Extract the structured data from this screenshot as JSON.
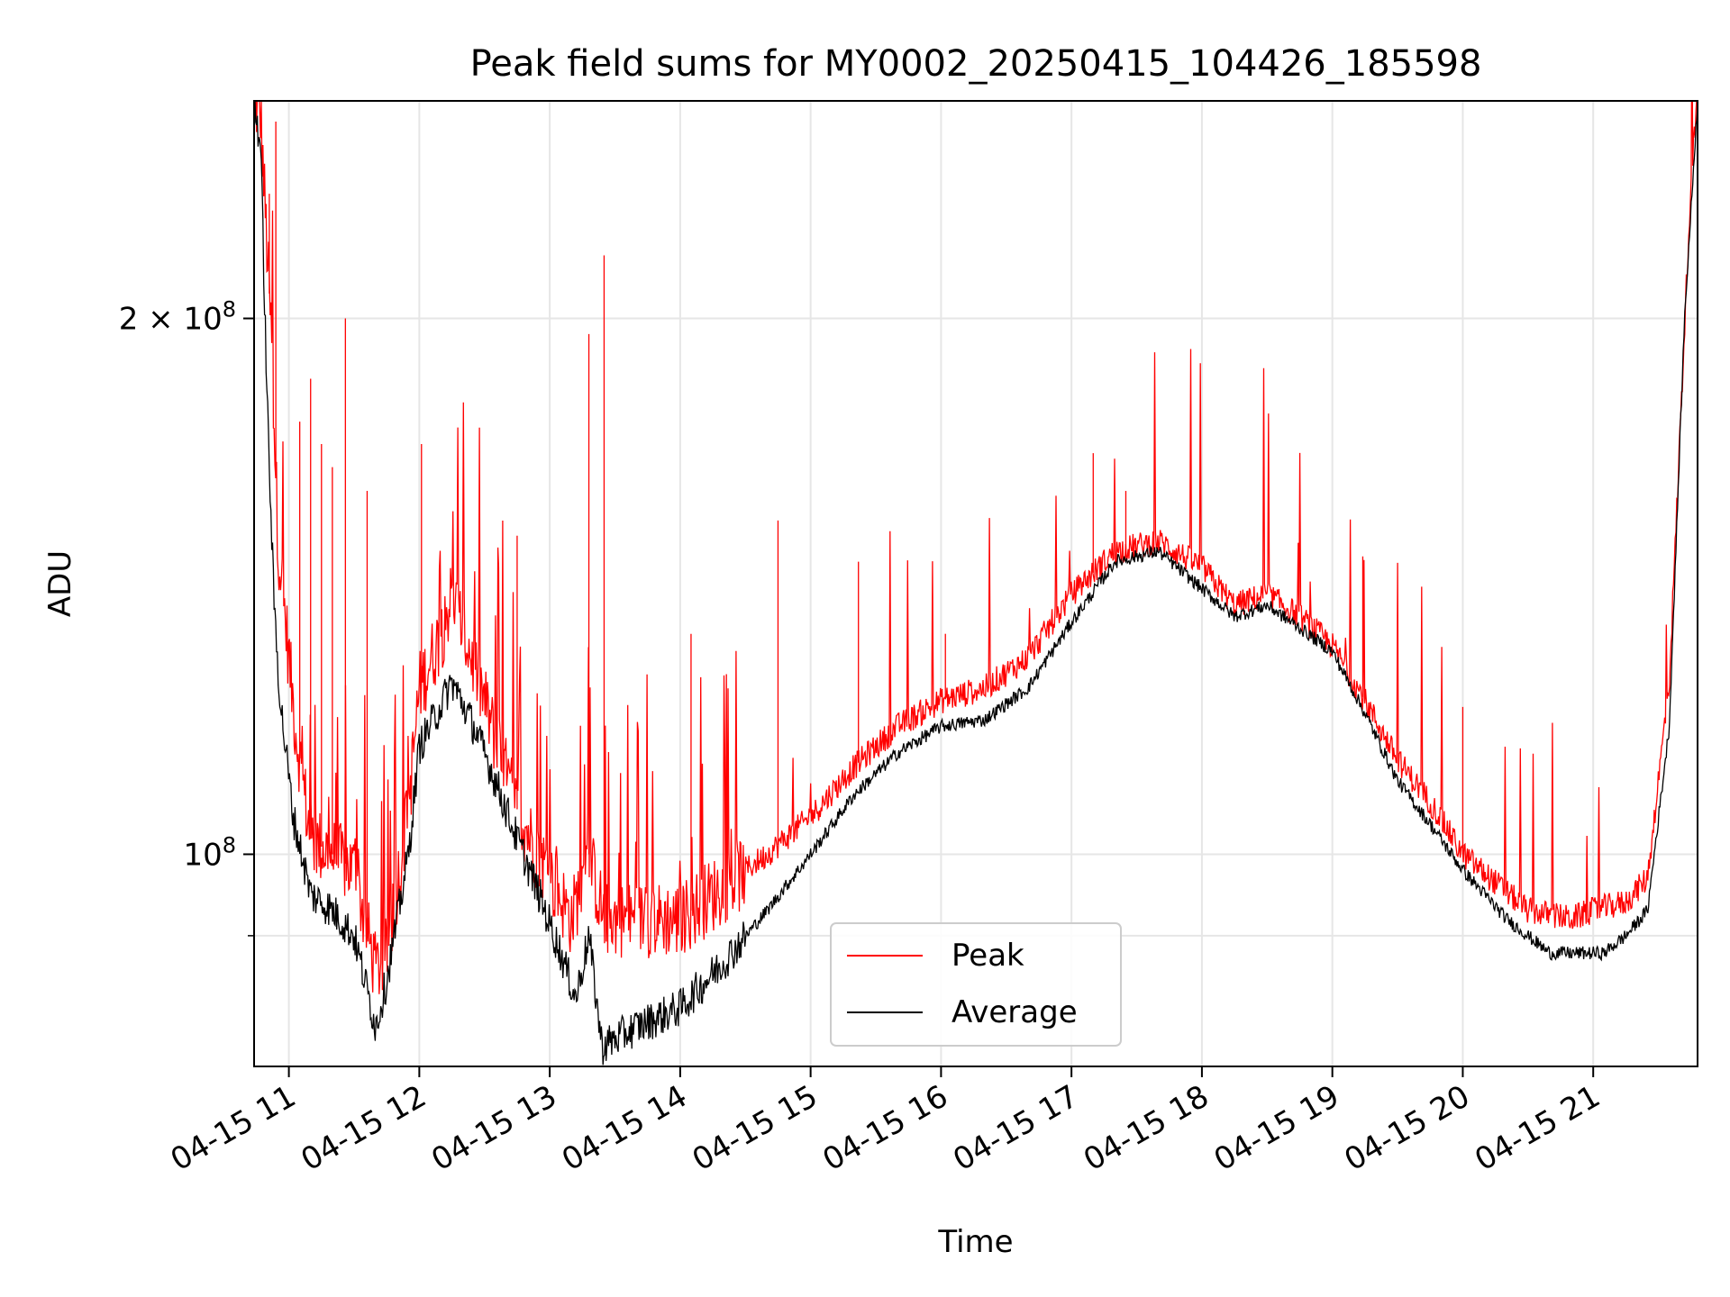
{
  "chart_data": {
    "type": "line",
    "title": "Peak field sums for MY0002_20250415_104426_185598",
    "xlabel": "Time",
    "ylabel": "ADU",
    "y_scale": "log",
    "ylim": [
      76000000,
      265000000
    ],
    "xlim": [
      "2025-04-15 10:44",
      "2025-04-15 21:48"
    ],
    "grid": true,
    "legend_position": "bottom-center",
    "x_tick_labels": [
      "04-15 11",
      "04-15 12",
      "04-15 13",
      "04-15 14",
      "04-15 15",
      "04-15 16",
      "04-15 17",
      "04-15 18",
      "04-15 19",
      "04-15 20",
      "04-15 21"
    ],
    "x_tick_values": [
      "2025-04-15 11:00",
      "2025-04-15 12:00",
      "2025-04-15 13:00",
      "2025-04-15 14:00",
      "2025-04-15 15:00",
      "2025-04-15 16:00",
      "2025-04-15 17:00",
      "2025-04-15 18:00",
      "2025-04-15 19:00",
      "2025-04-15 20:00",
      "2025-04-15 21:00"
    ],
    "y_major_ticks": [
      {
        "value": 100000000,
        "label_base": "10",
        "label_exp": "8"
      },
      {
        "value": 200000000,
        "label_base": "2 × 10",
        "label_exp": "8"
      }
    ],
    "y_minor_gridlines": [
      90000000
    ],
    "series": [
      {
        "name": "Peak",
        "color": "#ff0000",
        "x": [
          "2025-04-15 10:44",
          "2025-04-15 10:47",
          "2025-04-15 10:52",
          "2025-04-15 10:55",
          "2025-04-15 11:03",
          "2025-04-15 11:10",
          "2025-04-15 11:20",
          "2025-04-15 11:30",
          "2025-04-15 11:40",
          "2025-04-15 11:45",
          "2025-04-15 11:55",
          "2025-04-15 12:00",
          "2025-04-15 12:10",
          "2025-04-15 12:15",
          "2025-04-15 12:25",
          "2025-04-15 12:35",
          "2025-04-15 12:45",
          "2025-04-15 12:55",
          "2025-04-15 13:10",
          "2025-04-15 13:18",
          "2025-04-15 13:25",
          "2025-04-15 13:40",
          "2025-04-15 14:00",
          "2025-04-15 14:20",
          "2025-04-15 14:40",
          "2025-04-15 15:00",
          "2025-04-15 15:20",
          "2025-04-15 15:40",
          "2025-04-15 16:00",
          "2025-04-15 16:20",
          "2025-04-15 16:40",
          "2025-04-15 17:00",
          "2025-04-15 17:20",
          "2025-04-15 17:40",
          "2025-04-15 18:00",
          "2025-04-15 18:15",
          "2025-04-15 18:30",
          "2025-04-15 18:45",
          "2025-04-15 19:00",
          "2025-04-15 19:15",
          "2025-04-15 19:30",
          "2025-04-15 19:45",
          "2025-04-15 20:00",
          "2025-04-15 20:30",
          "2025-04-15 20:50",
          "2025-04-15 21:00",
          "2025-04-15 21:15",
          "2025-04-15 21:25",
          "2025-04-15 21:35",
          "2025-04-15 21:45",
          "2025-04-15 21:48"
        ],
        "y": [
          265000000,
          260000000,
          195000000,
          150000000,
          118000000,
          102000000,
          100000000,
          98000000,
          86000000,
          88000000,
          106000000,
          124000000,
          133000000,
          140000000,
          128000000,
          116000000,
          106000000,
          100000000,
          92000000,
          100000000,
          92000000,
          92000000,
          92000000,
          96000000,
          100000000,
          105000000,
          112000000,
          118000000,
          122000000,
          124000000,
          129000000,
          140000000,
          148000000,
          150000000,
          145000000,
          138000000,
          140000000,
          136000000,
          131000000,
          122000000,
          113000000,
          107000000,
          100000000,
          93000000,
          92000000,
          93000000,
          94000000,
          97000000,
          125000000,
          240000000,
          265000000
        ],
        "spikes": [
          {
            "x": "2025-04-15 10:54",
            "y": 258000000
          },
          {
            "x": "2025-04-15 10:51",
            "y": 235000000
          },
          {
            "x": "2025-04-15 11:10",
            "y": 185000000
          },
          {
            "x": "2025-04-15 11:05",
            "y": 175000000
          },
          {
            "x": "2025-04-15 11:15",
            "y": 170000000
          },
          {
            "x": "2025-04-15 11:20",
            "y": 165000000
          },
          {
            "x": "2025-04-15 11:26",
            "y": 200000000
          },
          {
            "x": "2025-04-15 11:36",
            "y": 160000000
          },
          {
            "x": "2025-04-15 12:01",
            "y": 170000000
          },
          {
            "x": "2025-04-15 12:45",
            "y": 151000000
          },
          {
            "x": "2025-04-15 13:18",
            "y": 196000000
          },
          {
            "x": "2025-04-15 13:25",
            "y": 217000000
          },
          {
            "x": "2025-04-15 14:05",
            "y": 133000000
          },
          {
            "x": "2025-04-15 14:45",
            "y": 154000000
          },
          {
            "x": "2025-04-15 15:22",
            "y": 146000000
          },
          {
            "x": "2025-04-15 16:02",
            "y": 133000000
          },
          {
            "x": "2025-04-15 17:10",
            "y": 168000000
          },
          {
            "x": "2025-04-15 17:25",
            "y": 160000000
          },
          {
            "x": "2025-04-15 19:14",
            "y": 147000000
          },
          {
            "x": "2025-04-15 20:00",
            "y": 121000000
          }
        ]
      },
      {
        "name": "Average",
        "color": "#000000",
        "x": [
          "2025-04-15 10:44",
          "2025-04-15 10:47",
          "2025-04-15 10:50",
          "2025-04-15 10:53",
          "2025-04-15 10:56",
          "2025-04-15 11:02",
          "2025-04-15 11:10",
          "2025-04-15 11:20",
          "2025-04-15 11:30",
          "2025-04-15 11:40",
          "2025-04-15 11:45",
          "2025-04-15 11:55",
          "2025-04-15 12:00",
          "2025-04-15 12:08",
          "2025-04-15 12:15",
          "2025-04-15 12:25",
          "2025-04-15 12:35",
          "2025-04-15 12:45",
          "2025-04-15 12:55",
          "2025-04-15 13:05",
          "2025-04-15 13:12",
          "2025-04-15 13:18",
          "2025-04-15 13:24",
          "2025-04-15 13:40",
          "2025-04-15 14:00",
          "2025-04-15 14:20",
          "2025-04-15 14:40",
          "2025-04-15 15:00",
          "2025-04-15 15:20",
          "2025-04-15 15:40",
          "2025-04-15 16:00",
          "2025-04-15 16:20",
          "2025-04-15 16:40",
          "2025-04-15 17:00",
          "2025-04-15 17:20",
          "2025-04-15 17:40",
          "2025-04-15 18:00",
          "2025-04-15 18:15",
          "2025-04-15 18:30",
          "2025-04-15 18:45",
          "2025-04-15 19:00",
          "2025-04-15 19:15",
          "2025-04-15 19:30",
          "2025-04-15 19:45",
          "2025-04-15 20:00",
          "2025-04-15 20:20",
          "2025-04-15 20:40",
          "2025-04-15 20:55",
          "2025-04-15 21:05",
          "2025-04-15 21:15",
          "2025-04-15 21:25",
          "2025-04-15 21:35",
          "2025-04-15 21:42",
          "2025-04-15 21:48"
        ],
        "y": [
          265000000,
          250000000,
          180000000,
          140000000,
          122000000,
          105000000,
          95000000,
          93000000,
          90000000,
          80000000,
          85000000,
          100000000,
          115000000,
          120000000,
          125000000,
          118000000,
          110000000,
          102000000,
          95000000,
          88000000,
          83000000,
          90000000,
          78000000,
          80000000,
          82000000,
          87000000,
          93000000,
          100000000,
          108000000,
          114000000,
          118000000,
          119000000,
          124000000,
          135000000,
          146000000,
          148000000,
          141000000,
          136000000,
          138000000,
          134000000,
          130000000,
          120000000,
          110000000,
          104000000,
          98000000,
          92000000,
          88000000,
          88000000,
          88000000,
          90000000,
          93000000,
          118000000,
          200000000,
          265000000
        ]
      }
    ]
  }
}
